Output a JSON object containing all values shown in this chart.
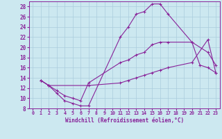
{
  "xlabel": "Windchill (Refroidissement éolien,°C)",
  "bg_color": "#cce8f0",
  "line_color": "#882299",
  "grid_color": "#aaccdd",
  "xlim": [
    -0.5,
    23.5
  ],
  "ylim": [
    8,
    29
  ],
  "xticks": [
    0,
    1,
    2,
    3,
    4,
    5,
    6,
    7,
    8,
    9,
    10,
    11,
    12,
    13,
    14,
    15,
    16,
    17,
    18,
    19,
    20,
    21,
    22,
    23
  ],
  "yticks": [
    8,
    10,
    12,
    14,
    16,
    18,
    20,
    22,
    24,
    26,
    28
  ],
  "curve1_x": [
    1,
    2,
    3,
    4,
    5,
    6,
    7,
    11,
    12,
    13,
    14,
    15,
    16,
    17,
    20,
    21,
    22,
    23
  ],
  "curve1_y": [
    13.5,
    12.5,
    11,
    9.5,
    9,
    8.5,
    8.5,
    22,
    24,
    26.5,
    27,
    28.5,
    28.5,
    26.5,
    21,
    16.5,
    16,
    15
  ],
  "curve2_x": [
    1,
    2,
    3,
    4,
    5,
    6,
    7,
    11,
    12,
    13,
    14,
    15,
    16,
    17,
    20,
    22,
    23
  ],
  "curve2_y": [
    13.5,
    12.5,
    11.5,
    10.5,
    10,
    9.5,
    13,
    17,
    17.5,
    18.5,
    19,
    20.5,
    21,
    21,
    21,
    19,
    16.5
  ],
  "curve3_x": [
    1,
    2,
    7,
    11,
    12,
    13,
    14,
    15,
    16,
    17,
    20,
    22,
    23
  ],
  "curve3_y": [
    13.5,
    12.5,
    12.5,
    13,
    13.5,
    14,
    14.5,
    15,
    15.5,
    16,
    17,
    21.5,
    15
  ]
}
